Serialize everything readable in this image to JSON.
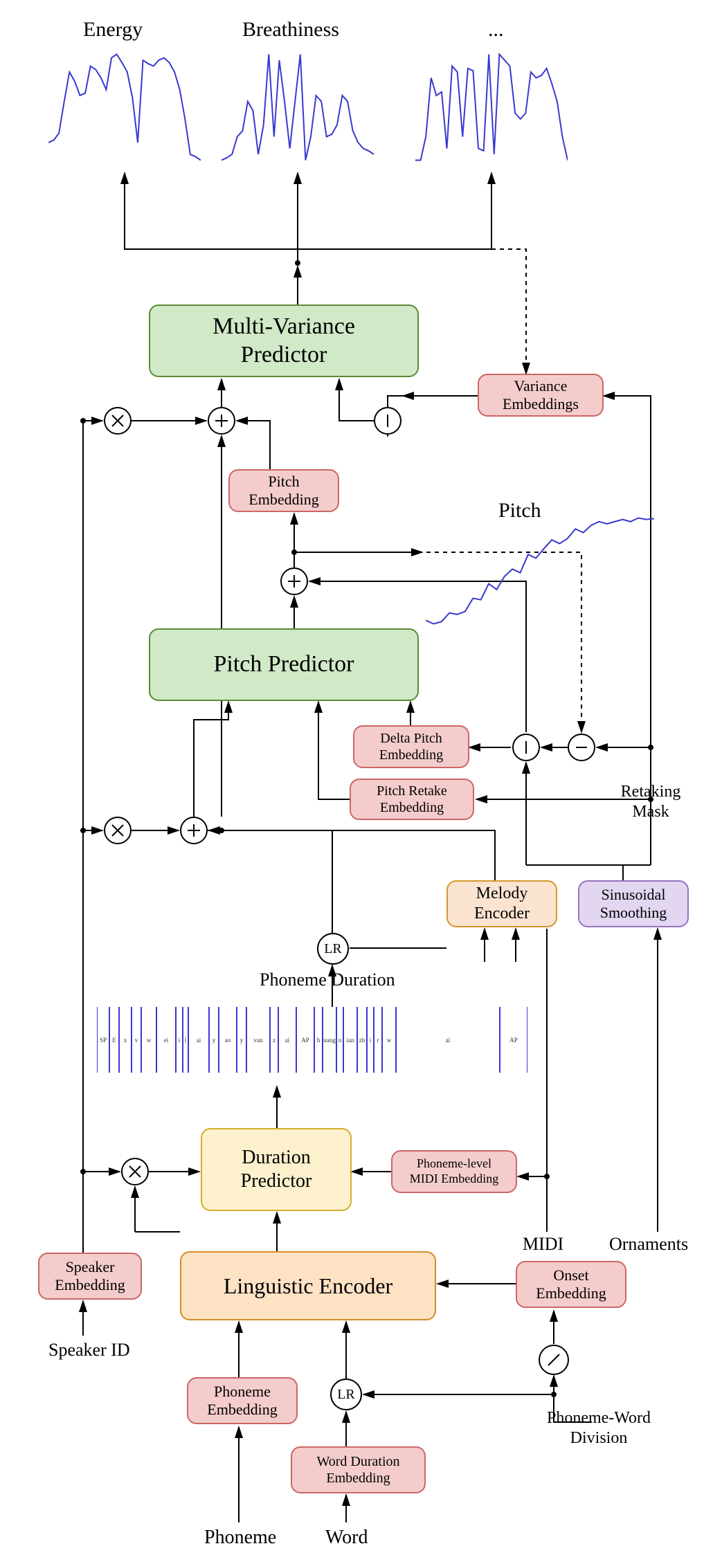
{
  "colors": {
    "green_fill": "#d0e9c6",
    "green_border": "#5a8a3a",
    "yellow_fill": "#fcf0cd",
    "yellow_border": "#d6ac2b",
    "orange_fill": "#fde2c4",
    "orange_border": "#d68b2b",
    "red_fill": "#f4cccc",
    "red_border": "#cc6666",
    "lightorange_fill": "#fbe4cf",
    "lightorange_border": "#d6962b",
    "purple_fill": "#e2d6f0",
    "purple_border": "#9673c0",
    "signal": "#3838d0",
    "text": "#000000"
  },
  "fonts": {
    "big": 34,
    "med": 24,
    "small": 20,
    "tiny": 14
  },
  "outputs": {
    "energy": "Energy",
    "breathiness": "Breathiness",
    "etc": "..."
  },
  "blocks": {
    "mvp": "Multi-Variance\nPredictor",
    "variance_emb": "Variance\nEmbeddings",
    "pitch_emb": "Pitch\nEmbedding",
    "pitch_label": "Pitch",
    "pitch_predictor": "Pitch Predictor",
    "delta_pitch": "Delta Pitch\nEmbedding",
    "pitch_retake": "Pitch Retake\nEmbedding",
    "retaking_mask": "Retaking\nMask",
    "melody_enc": "Melody\nEncoder",
    "sin_smooth": "Sinusoidal\nSmoothing",
    "phoneme_duration": "Phoneme Duration",
    "dur_predictor": "Duration\nPredictor",
    "midi_emb": "Phoneme-level\nMIDI Embedding",
    "midi": "MIDI",
    "ornaments": "Ornaments",
    "speaker_emb": "Speaker\nEmbedding",
    "speaker_id": "Speaker ID",
    "ling_enc": "Linguistic Encoder",
    "onset_emb": "Onset\nEmbedding",
    "phoneme_emb": "Phoneme\nEmbedding",
    "word_dur_emb": "Word Duration\nEmbedding",
    "pw_div": "Phoneme-Word\nDivision",
    "phoneme": "Phoneme",
    "word": "Word",
    "lr": "LR"
  },
  "phoneme_tokens": [
    "SP",
    "E",
    "x",
    "v",
    "w",
    "ei",
    "i",
    "l",
    "ai",
    "y",
    "ao",
    "y",
    "van",
    "z",
    "ai",
    "AP",
    "h",
    "uang",
    "n",
    "ian",
    "zh",
    "i",
    "r",
    "w",
    "ai",
    "AP"
  ],
  "signals": {
    "energy_y": [
      130,
      128,
      122,
      95,
      70,
      78,
      90,
      88,
      65,
      68,
      75,
      85,
      58,
      55,
      62,
      70,
      92,
      130,
      60,
      63,
      65,
      60,
      58,
      62,
      70,
      85,
      110,
      140,
      142,
      145
    ],
    "breath_y": [
      150,
      148,
      145,
      130,
      125,
      100,
      108,
      145,
      120,
      60,
      130,
      65,
      100,
      140,
      100,
      60,
      150,
      130,
      95,
      100,
      130,
      128,
      120,
      95,
      100,
      125,
      135,
      140,
      142,
      145
    ],
    "etc_y": [
      150,
      150,
      130,
      80,
      95,
      92,
      140,
      70,
      75,
      130,
      72,
      74,
      140,
      142,
      60,
      145,
      60,
      65,
      70,
      110,
      115,
      110,
      75,
      80,
      78,
      72,
      85,
      100,
      130,
      150
    ],
    "pitch_y": [
      880,
      885,
      882,
      870,
      872,
      868,
      850,
      852,
      830,
      838,
      820,
      810,
      815,
      790,
      795,
      782,
      770,
      775,
      768,
      755,
      760,
      750,
      745,
      748,
      745,
      742,
      745,
      740,
      742,
      741
    ]
  }
}
